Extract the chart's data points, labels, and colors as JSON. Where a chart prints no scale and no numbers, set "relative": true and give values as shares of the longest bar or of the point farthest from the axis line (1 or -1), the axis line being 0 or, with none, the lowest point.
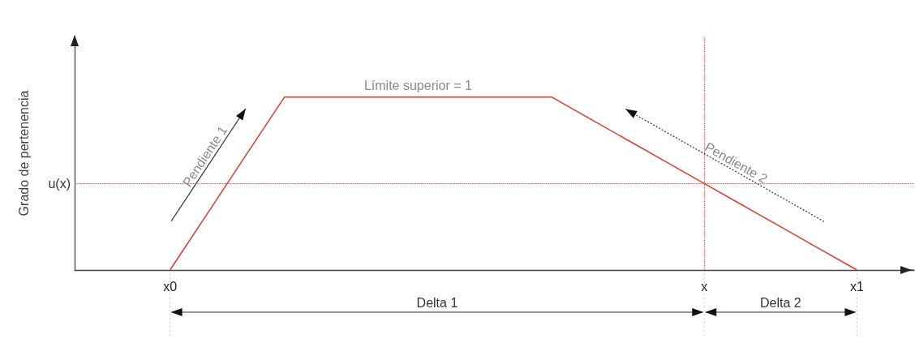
{
  "chart_data": {
    "type": "line",
    "relative": true,
    "ylabel": "Grado de pertenencia",
    "categories": [
      null,
      null,
      "x0",
      null,
      null,
      null,
      null,
      null,
      null,
      null,
      null,
      null,
      null,
      null,
      null,
      null,
      "x",
      null,
      null,
      null,
      "x1",
      null
    ],
    "values": [
      null,
      null,
      0,
      0.333,
      0.667,
      1,
      1,
      1,
      1,
      1,
      1,
      1,
      1,
      0.875,
      0.75,
      0.625,
      0.5,
      0.375,
      0.25,
      0.125,
      0,
      null
    ],
    "color": "#e3392d",
    "marker": "none",
    "line_style": "solid",
    "ref_lines": [
      {
        "axis": "y",
        "value": 0.5,
        "label": "u(x)",
        "color": "#e3392d",
        "line_style": "dotted"
      },
      {
        "axis": "x",
        "value": "x",
        "color": "#e3392d",
        "line_style": "dotted"
      }
    ],
    "annotations": [
      "Límite superior = 1",
      "Pendiente 1",
      "Pendiente 2",
      "Delta 1",
      "Delta 2"
    ]
  }
}
